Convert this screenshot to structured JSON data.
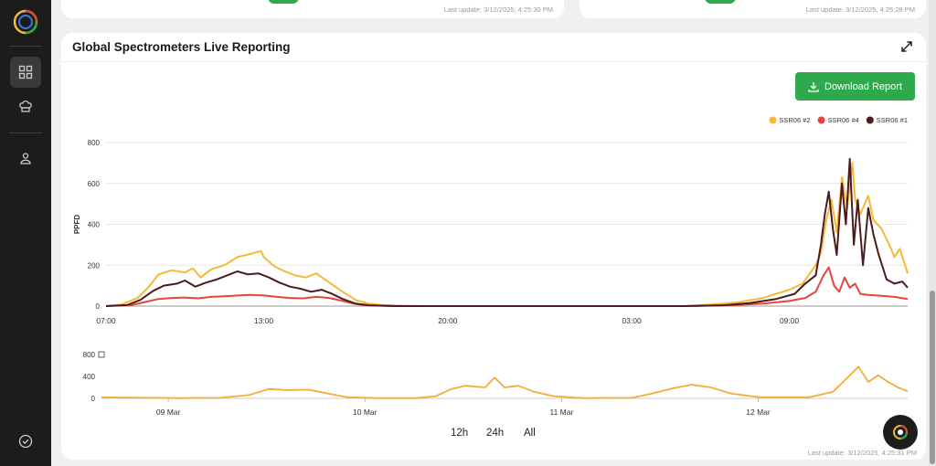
{
  "top_cards": [
    {
      "last_update": "Last update: 3/12/2025, 4:25:30 PM"
    },
    {
      "last_update": "Last update: 3/12/2025, 4:25:28 PM"
    }
  ],
  "card": {
    "title": "Global Spectrometers Live Reporting",
    "download_label": "Download Report",
    "last_update": "Last update: 3/12/2025, 4:25:31 PM",
    "ranges": [
      "12h",
      "24h",
      "All"
    ]
  },
  "icons": {
    "logo": "spiral-logo-icon",
    "nav": [
      "dashboard-icon",
      "chef-hat-icon",
      "user-icon",
      "check-circle-icon"
    ],
    "expand": "expand-arrows-icon",
    "download": "download-icon",
    "chat": "chat-assistant-icon"
  },
  "colors": {
    "sidebar": "#1c1c1c",
    "accent_green": "#2eaa4c",
    "ssr06_2": "#f5b935",
    "ssr06_4": "#e3463a",
    "ssr06_1": "#4d1a1d",
    "navigator": "#f5ac35"
  },
  "chart_data": [
    {
      "type": "line",
      "ylabel": "PPFD",
      "xlabel": "",
      "ylim": [
        0,
        800
      ],
      "y_ticks": [
        "0",
        "200",
        "400",
        "600",
        "800"
      ],
      "x_range_hours": [
        0,
        30.5
      ],
      "x_ticks": [
        {
          "label": "07:00",
          "hour": 0
        },
        {
          "label": "13:00",
          "hour": 6
        },
        {
          "label": "20:00",
          "hour": 13
        },
        {
          "label": "03:00",
          "hour": 20
        },
        {
          "label": "09:00",
          "hour": 26
        }
      ],
      "legend_position": "top-right",
      "grid": true,
      "series": [
        {
          "name": "SSR06 #2",
          "color": "#f5b935",
          "points": [
            [
              0,
              0
            ],
            [
              0.6,
              8
            ],
            [
              1.2,
              40
            ],
            [
              1.6,
              90
            ],
            [
              2,
              155
            ],
            [
              2.5,
              175
            ],
            [
              3,
              165
            ],
            [
              3.3,
              185
            ],
            [
              3.6,
              140
            ],
            [
              4,
              180
            ],
            [
              4.5,
              200
            ],
            [
              5,
              240
            ],
            [
              5.5,
              255
            ],
            [
              5.9,
              270
            ],
            [
              6,
              240
            ],
            [
              6.4,
              195
            ],
            [
              6.8,
              170
            ],
            [
              7.2,
              150
            ],
            [
              7.6,
              140
            ],
            [
              8,
              160
            ],
            [
              8.5,
              115
            ],
            [
              9,
              70
            ],
            [
              9.5,
              30
            ],
            [
              10,
              12
            ],
            [
              10.5,
              5
            ],
            [
              11,
              3
            ],
            [
              12,
              0
            ],
            [
              22,
              0
            ],
            [
              23,
              8
            ],
            [
              24,
              18
            ],
            [
              25,
              40
            ],
            [
              26,
              80
            ],
            [
              26.5,
              110
            ],
            [
              27,
              200
            ],
            [
              27.2,
              260
            ],
            [
              27.4,
              420
            ],
            [
              27.6,
              520
            ],
            [
              27.8,
              360
            ],
            [
              28,
              630
            ],
            [
              28.2,
              480
            ],
            [
              28.4,
              700
            ],
            [
              28.5,
              520
            ],
            [
              28.7,
              450
            ],
            [
              29,
              540
            ],
            [
              29.2,
              420
            ],
            [
              29.5,
              380
            ],
            [
              29.8,
              300
            ],
            [
              30,
              240
            ],
            [
              30.2,
              280
            ],
            [
              30.5,
              160
            ]
          ]
        },
        {
          "name": "SSR06 #4",
          "color": "#e3463a",
          "points": [
            [
              0,
              0
            ],
            [
              1,
              6
            ],
            [
              1.5,
              20
            ],
            [
              2,
              35
            ],
            [
              2.5,
              40
            ],
            [
              3,
              42
            ],
            [
              3.5,
              38
            ],
            [
              4,
              45
            ],
            [
              4.5,
              48
            ],
            [
              5,
              52
            ],
            [
              5.5,
              55
            ],
            [
              6,
              52
            ],
            [
              6.5,
              45
            ],
            [
              7,
              40
            ],
            [
              7.5,
              38
            ],
            [
              8,
              45
            ],
            [
              8.5,
              40
            ],
            [
              9,
              25
            ],
            [
              9.5,
              10
            ],
            [
              10,
              3
            ],
            [
              11,
              0
            ],
            [
              22,
              0
            ],
            [
              24,
              6
            ],
            [
              25,
              12
            ],
            [
              26,
              25
            ],
            [
              26.6,
              40
            ],
            [
              27,
              70
            ],
            [
              27.3,
              150
            ],
            [
              27.5,
              190
            ],
            [
              27.7,
              100
            ],
            [
              27.9,
              70
            ],
            [
              28.1,
              140
            ],
            [
              28.3,
              90
            ],
            [
              28.5,
              110
            ],
            [
              28.7,
              60
            ],
            [
              29,
              55
            ],
            [
              29.5,
              50
            ],
            [
              30,
              45
            ],
            [
              30.5,
              35
            ]
          ]
        },
        {
          "name": "SSR06 #1",
          "color": "#4d1a1d",
          "points": [
            [
              0,
              0
            ],
            [
              0.8,
              5
            ],
            [
              1.3,
              30
            ],
            [
              1.8,
              75
            ],
            [
              2.2,
              100
            ],
            [
              2.7,
              110
            ],
            [
              3,
              125
            ],
            [
              3.4,
              95
            ],
            [
              3.8,
              115
            ],
            [
              4.2,
              130
            ],
            [
              4.6,
              150
            ],
            [
              5,
              170
            ],
            [
              5.4,
              155
            ],
            [
              5.8,
              160
            ],
            [
              6.2,
              140
            ],
            [
              6.6,
              115
            ],
            [
              7,
              95
            ],
            [
              7.4,
              85
            ],
            [
              7.8,
              70
            ],
            [
              8.2,
              80
            ],
            [
              8.6,
              60
            ],
            [
              9,
              35
            ],
            [
              9.5,
              12
            ],
            [
              10,
              4
            ],
            [
              11,
              0
            ],
            [
              22,
              0
            ],
            [
              23.5,
              4
            ],
            [
              24.5,
              15
            ],
            [
              25.5,
              35
            ],
            [
              26.2,
              60
            ],
            [
              26.6,
              110
            ],
            [
              27,
              150
            ],
            [
              27.2,
              300
            ],
            [
              27.35,
              450
            ],
            [
              27.5,
              560
            ],
            [
              27.65,
              380
            ],
            [
              27.8,
              250
            ],
            [
              28,
              600
            ],
            [
              28.15,
              400
            ],
            [
              28.3,
              720
            ],
            [
              28.45,
              300
            ],
            [
              28.6,
              520
            ],
            [
              28.8,
              200
            ],
            [
              29,
              480
            ],
            [
              29.2,
              350
            ],
            [
              29.4,
              250
            ],
            [
              29.7,
              130
            ],
            [
              30,
              110
            ],
            [
              30.3,
              120
            ],
            [
              30.5,
              90
            ]
          ]
        }
      ]
    },
    {
      "type": "area",
      "ylim": [
        0,
        800
      ],
      "y_ticks": [
        "0",
        "400",
        "800"
      ],
      "x_range_days": [
        0,
        4.1
      ],
      "x_ticks": [
        {
          "label": "09 Mar",
          "day": 0.34
        },
        {
          "label": "10 Mar",
          "day": 1.34
        },
        {
          "label": "11 Mar",
          "day": 2.34
        },
        {
          "label": "12 Mar",
          "day": 3.34
        }
      ],
      "series": [
        {
          "name": "",
          "color": "#f5ac35",
          "points": [
            [
              0,
              20
            ],
            [
              0.4,
              5
            ],
            [
              0.6,
              10
            ],
            [
              0.75,
              60
            ],
            [
              0.85,
              170
            ],
            [
              0.95,
              150
            ],
            [
              1.05,
              160
            ],
            [
              1.15,
              90
            ],
            [
              1.25,
              20
            ],
            [
              1.4,
              5
            ],
            [
              1.6,
              5
            ],
            [
              1.7,
              40
            ],
            [
              1.78,
              170
            ],
            [
              1.85,
              230
            ],
            [
              1.95,
              200
            ],
            [
              2.0,
              380
            ],
            [
              2.05,
              200
            ],
            [
              2.12,
              230
            ],
            [
              2.2,
              120
            ],
            [
              2.3,
              40
            ],
            [
              2.45,
              5
            ],
            [
              2.7,
              10
            ],
            [
              2.8,
              90
            ],
            [
              2.9,
              180
            ],
            [
              3.0,
              250
            ],
            [
              3.1,
              200
            ],
            [
              3.2,
              90
            ],
            [
              3.35,
              20
            ],
            [
              3.6,
              20
            ],
            [
              3.72,
              120
            ],
            [
              3.8,
              400
            ],
            [
              3.85,
              580
            ],
            [
              3.9,
              300
            ],
            [
              3.95,
              420
            ],
            [
              4.0,
              300
            ],
            [
              4.05,
              200
            ],
            [
              4.1,
              130
            ]
          ]
        }
      ]
    }
  ]
}
